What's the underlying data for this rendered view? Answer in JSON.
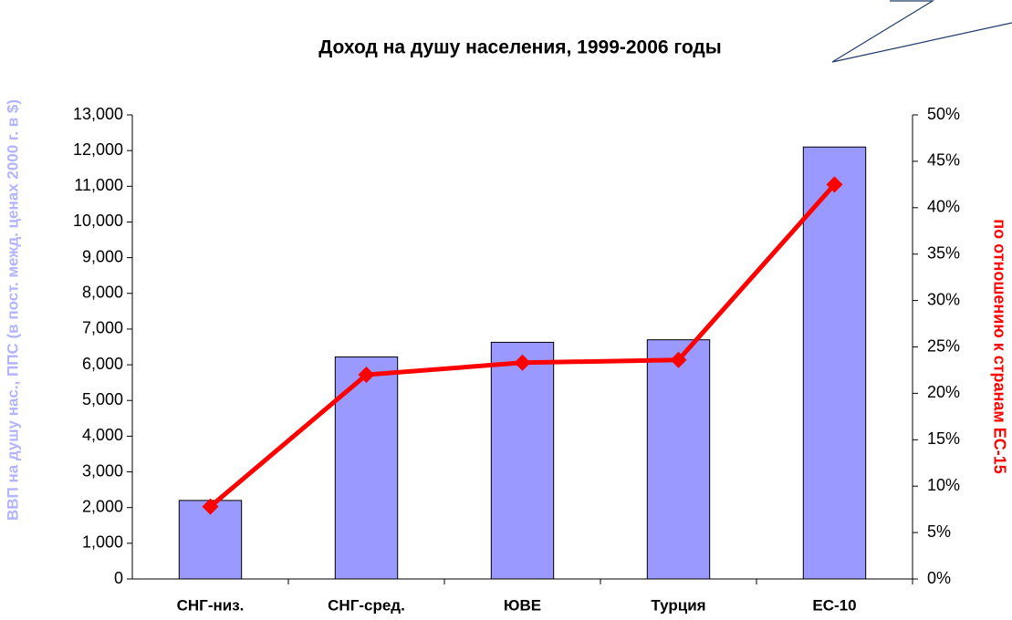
{
  "chart_data": {
    "type": "bar",
    "title": "Доход на душу населения, 1999-2006 годы",
    "ylabel": "ВВП на душу нас., ППС (в пост. межд. ценах  2000 г. в $)",
    "y2label": "по отношению к странам ЕС-15",
    "categories": [
      "СНГ-низ.",
      "СНГ-сред.",
      "ЮВЕ",
      "Турция",
      "ЕС-10"
    ],
    "series": [
      {
        "type": "bar",
        "color": "#9999ff",
        "values": [
          2200,
          6220,
          6630,
          6700,
          12100
        ]
      },
      {
        "type": "line",
        "axis": "y2",
        "color": "#ff0000",
        "values": [
          7.8,
          22.0,
          23.3,
          23.6,
          42.5
        ]
      }
    ],
    "ylim": [
      0,
      13000
    ],
    "yticks": [
      0,
      {
        "value": 1000,
        "label": "1,000"
      },
      {
        "value": 2000,
        "label": "2,000"
      },
      {
        "value": 3000,
        "label": "3,000"
      },
      {
        "value": 4000,
        "label": "4,000"
      },
      {
        "value": 5000,
        "label": "5,000"
      },
      {
        "value": 6000,
        "label": "6,000"
      },
      {
        "value": 7000,
        "label": "7,000"
      },
      {
        "value": 8000,
        "label": "8,000"
      },
      {
        "value": 9000,
        "label": "9,000"
      },
      {
        "value": 10000,
        "label": "10,000"
      },
      {
        "value": 11000,
        "label": "11,000"
      },
      {
        "value": 12000,
        "label": "12,000"
      },
      {
        "value": 13000,
        "label": "13,000"
      }
    ],
    "y2lim": [
      0,
      50
    ],
    "y2ticks": [
      {
        "value": 0,
        "label": "0%"
      },
      {
        "value": 5,
        "label": "5%"
      },
      {
        "value": 10,
        "label": "10%"
      },
      {
        "value": 15,
        "label": "15%"
      },
      {
        "value": 20,
        "label": "20%"
      },
      {
        "value": 25,
        "label": "25%"
      },
      {
        "value": 30,
        "label": "30%"
      },
      {
        "value": 35,
        "label": "35%"
      },
      {
        "value": 40,
        "label": "40%"
      },
      {
        "value": 45,
        "label": "45%"
      },
      {
        "value": 50,
        "label": "50%"
      }
    ],
    "grid": false
  }
}
